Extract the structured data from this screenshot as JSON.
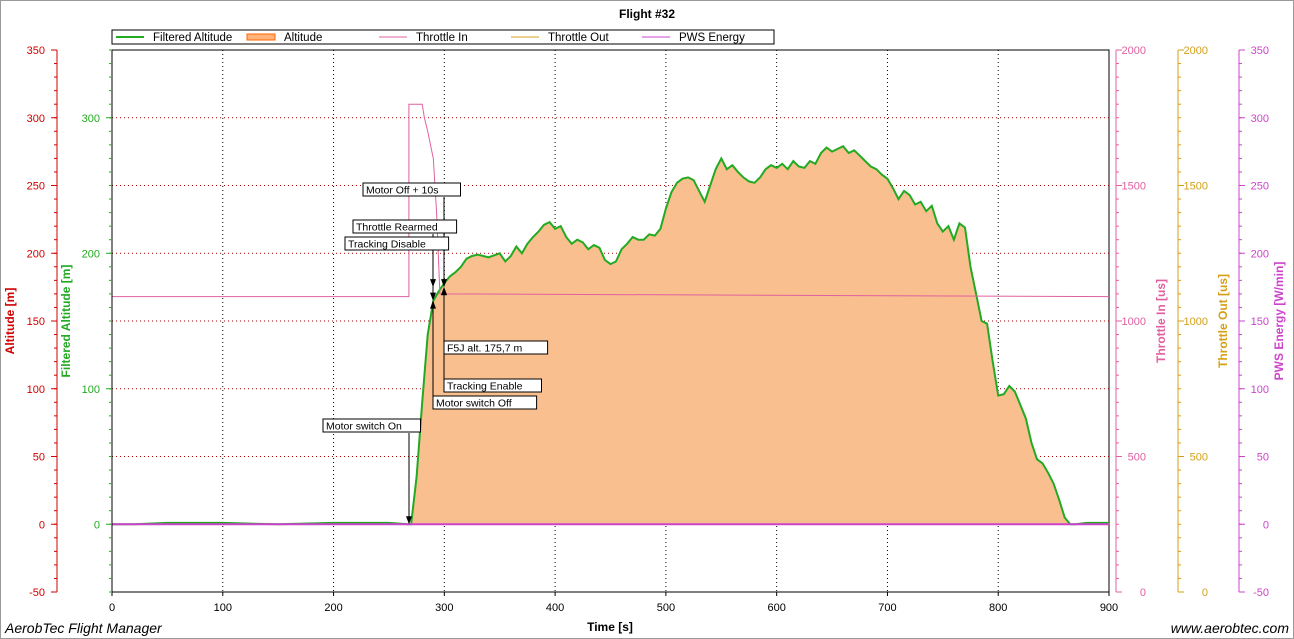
{
  "chart_data": {
    "type": "line",
    "title": "Flight #32",
    "xlabel": "Time [s]",
    "xlim": [
      0,
      900
    ],
    "x_ticks": [
      0,
      100,
      200,
      300,
      400,
      500,
      600,
      700,
      800,
      900
    ],
    "grid": true,
    "legend_placement": "top-left",
    "legend": [
      {
        "name": "Filtered Altitude",
        "color": "#22aa22",
        "style": "line"
      },
      {
        "name": "Altitude",
        "color": "#ff6600",
        "style": "band"
      },
      {
        "name": "Throttle In",
        "color": "#e060a0",
        "style": "line"
      },
      {
        "name": "Throttle Out",
        "color": "#d4a017",
        "style": "line"
      },
      {
        "name": "PWS Energy",
        "color": "#cc44cc",
        "style": "line"
      }
    ],
    "axes": [
      {
        "label": "Altitude [m]",
        "side": "left",
        "color": "#d00000",
        "range": [
          -50,
          350
        ],
        "ticks": [
          -50,
          0,
          50,
          100,
          150,
          200,
          250,
          300,
          350
        ]
      },
      {
        "label": "Filtered Altitude [m]",
        "side": "left",
        "color": "#22aa22",
        "range": [
          -50,
          350
        ],
        "ticks": [
          0,
          100,
          200,
          300
        ]
      },
      {
        "label": "Throttle In [us]",
        "side": "right",
        "color": "#e060a0",
        "range": [
          0,
          2000
        ],
        "ticks": [
          0,
          500,
          1000,
          1500,
          2000
        ]
      },
      {
        "label": "Throttle Out [us]",
        "side": "right",
        "color": "#d4a017",
        "range": [
          0,
          2000
        ],
        "ticks": [
          0,
          500,
          1000,
          1500,
          2000
        ]
      },
      {
        "label": "PWS Energy [W/min]",
        "side": "right",
        "color": "#cc44cc",
        "range": [
          -50,
          350
        ],
        "ticks": [
          -50,
          0,
          50,
          100,
          150,
          200,
          250,
          300,
          350
        ]
      }
    ],
    "series": [
      {
        "name": "Filtered Altitude",
        "color": "#22aa22",
        "fill": "#f9bf8e",
        "points": [
          [
            0,
            0
          ],
          [
            20,
            0
          ],
          [
            50,
            1
          ],
          [
            100,
            1
          ],
          [
            150,
            0
          ],
          [
            200,
            1
          ],
          [
            250,
            1
          ],
          [
            267,
            0
          ],
          [
            270,
            0
          ],
          [
            275,
            35
          ],
          [
            280,
            90
          ],
          [
            285,
            140
          ],
          [
            290,
            165
          ],
          [
            295,
            172
          ],
          [
            300,
            178
          ],
          [
            305,
            183
          ],
          [
            310,
            186
          ],
          [
            315,
            190
          ],
          [
            320,
            196
          ],
          [
            325,
            198
          ],
          [
            330,
            199
          ],
          [
            340,
            197
          ],
          [
            350,
            200
          ],
          [
            355,
            194
          ],
          [
            360,
            198
          ],
          [
            365,
            205
          ],
          [
            370,
            200
          ],
          [
            375,
            207
          ],
          [
            380,
            212
          ],
          [
            385,
            216
          ],
          [
            390,
            221
          ],
          [
            395,
            223
          ],
          [
            400,
            218
          ],
          [
            405,
            220
          ],
          [
            410,
            212
          ],
          [
            415,
            207
          ],
          [
            420,
            210
          ],
          [
            425,
            208
          ],
          [
            430,
            203
          ],
          [
            435,
            206
          ],
          [
            440,
            204
          ],
          [
            445,
            195
          ],
          [
            450,
            192
          ],
          [
            455,
            194
          ],
          [
            460,
            203
          ],
          [
            465,
            207
          ],
          [
            470,
            212
          ],
          [
            475,
            210
          ],
          [
            480,
            210
          ],
          [
            485,
            214
          ],
          [
            490,
            213
          ],
          [
            495,
            218
          ],
          [
            500,
            233
          ],
          [
            505,
            245
          ],
          [
            510,
            252
          ],
          [
            515,
            255
          ],
          [
            520,
            256
          ],
          [
            525,
            254
          ],
          [
            530,
            246
          ],
          [
            535,
            238
          ],
          [
            540,
            250
          ],
          [
            545,
            262
          ],
          [
            550,
            270
          ],
          [
            555,
            262
          ],
          [
            560,
            265
          ],
          [
            565,
            260
          ],
          [
            570,
            256
          ],
          [
            575,
            253
          ],
          [
            580,
            252
          ],
          [
            585,
            256
          ],
          [
            590,
            262
          ],
          [
            595,
            265
          ],
          [
            600,
            263
          ],
          [
            605,
            266
          ],
          [
            610,
            262
          ],
          [
            615,
            268
          ],
          [
            620,
            264
          ],
          [
            625,
            263
          ],
          [
            630,
            268
          ],
          [
            635,
            266
          ],
          [
            640,
            274
          ],
          [
            645,
            278
          ],
          [
            650,
            275
          ],
          [
            655,
            277
          ],
          [
            660,
            279
          ],
          [
            665,
            274
          ],
          [
            670,
            276
          ],
          [
            675,
            272
          ],
          [
            680,
            268
          ],
          [
            685,
            264
          ],
          [
            690,
            262
          ],
          [
            695,
            258
          ],
          [
            700,
            255
          ],
          [
            705,
            248
          ],
          [
            710,
            240
          ],
          [
            715,
            246
          ],
          [
            720,
            243
          ],
          [
            725,
            236
          ],
          [
            730,
            238
          ],
          [
            735,
            231
          ],
          [
            740,
            235
          ],
          [
            745,
            222
          ],
          [
            750,
            216
          ],
          [
            755,
            220
          ],
          [
            760,
            210
          ],
          [
            765,
            222
          ],
          [
            770,
            219
          ],
          [
            775,
            190
          ],
          [
            780,
            170
          ],
          [
            785,
            150
          ],
          [
            790,
            148
          ],
          [
            795,
            120
          ],
          [
            800,
            95
          ],
          [
            805,
            96
          ],
          [
            810,
            102
          ],
          [
            815,
            98
          ],
          [
            820,
            88
          ],
          [
            825,
            78
          ],
          [
            830,
            60
          ],
          [
            835,
            48
          ],
          [
            840,
            45
          ],
          [
            845,
            38
          ],
          [
            850,
            30
          ],
          [
            855,
            18
          ],
          [
            860,
            5
          ],
          [
            865,
            0
          ],
          [
            870,
            0
          ],
          [
            880,
            1
          ],
          [
            900,
            1
          ]
        ]
      },
      {
        "name": "Throttle In",
        "color": "#e060a0",
        "points": [
          [
            0,
            1090
          ],
          [
            268,
            1090
          ],
          [
            268,
            1800
          ],
          [
            280,
            1800
          ],
          [
            282,
            1750
          ],
          [
            285,
            1700
          ],
          [
            290,
            1600
          ],
          [
            293,
            1400
          ],
          [
            296,
            1100
          ],
          [
            900,
            1090
          ]
        ]
      },
      {
        "name": "PWS Energy",
        "color": "#cc44cc",
        "points": [
          [
            0,
            0
          ],
          [
            900,
            0
          ]
        ]
      }
    ],
    "annotations": [
      {
        "text": "Motor Off + 10s",
        "x": 300,
        "y": 175
      },
      {
        "text": "Throttle Rearmed",
        "x": 300,
        "y": 175
      },
      {
        "text": "Tracking Disable",
        "x": 290,
        "y": 165
      },
      {
        "text": "F5J alt. 175,7 m",
        "x": 300,
        "y": 175
      },
      {
        "text": "Tracking Enable",
        "x": 300,
        "y": 175
      },
      {
        "text": "Motor switch Off",
        "x": 290,
        "y": 165
      },
      {
        "text": "Motor switch On",
        "x": 270,
        "y": 0
      }
    ]
  },
  "footer": {
    "app_name": "AerobTec Flight Manager",
    "website": "www.aerobtec.com"
  }
}
